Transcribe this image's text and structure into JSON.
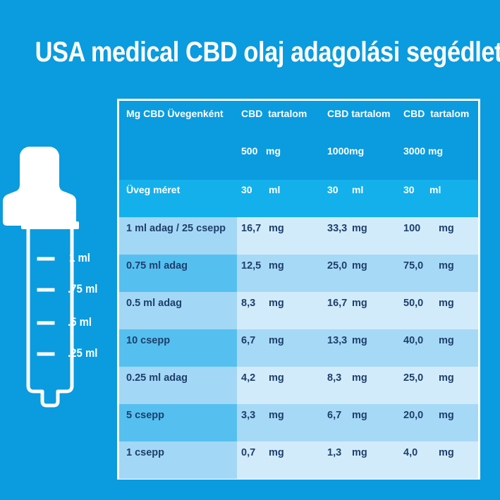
{
  "title": "USA medical CBD olaj adagolási segédlet",
  "colors": {
    "background": "#0b9bdf",
    "header_dark": "#0b9bdf",
    "header_light": "#14b0ec",
    "label_col_a": "#a3d7f6",
    "label_col_b": "#55c0f0",
    "data_light": "#d2ebfb",
    "data_mid": "#a6d9f6",
    "text_dark": "#1d3f6b"
  },
  "dropper": {
    "marks": [
      "1 ml",
      ".75 ml",
      ".5 ml",
      ".25 ml"
    ]
  },
  "table": {
    "header": {
      "col0": "Mg CBD Üvegenként",
      "col1_line1": "CBD  tartalom",
      "col1_line2": "500   mg",
      "col2_line1": "CBD tartalom",
      "col2_line2": "1000mg",
      "col3_line1": "CBD  tartalom",
      "col3_line2": "3000 mg"
    },
    "size_row": {
      "label": "Üveg méret",
      "v1": "30",
      "u1": "ml",
      "v2": "30",
      "u2": "ml",
      "v3": "30",
      "u3": "ml"
    },
    "rows": [
      {
        "label": "1 ml adag / 25 csepp",
        "v1": "16,7",
        "u1": "mg",
        "v2": "33,3",
        "u2": "mg",
        "v3": "100",
        "u3": "mg"
      },
      {
        "label": "0.75 ml adag",
        "v1": "12,5",
        "u1": "mg",
        "v2": "25,0",
        "u2": "mg",
        "v3": "75,0",
        "u3": "mg"
      },
      {
        "label": "0.5 ml adag",
        "v1": "8,3",
        "u1": "mg",
        "v2": "16,7",
        "u2": "mg",
        "v3": "50,0",
        "u3": "mg"
      },
      {
        "label": "10 csepp",
        "v1": "6,7",
        "u1": "mg",
        "v2": "13,3",
        "u2": "mg",
        "v3": "40,0",
        "u3": "mg"
      },
      {
        "label": "0.25 ml adag",
        "v1": "4,2",
        "u1": "mg",
        "v2": "8,3",
        "u2": "mg",
        "v3": "25,0",
        "u3": "mg"
      },
      {
        "label": "5 csepp",
        "v1": "3,3",
        "u1": "mg",
        "v2": "6,7",
        "u2": "mg",
        "v3": "20,0",
        "u3": "mg"
      },
      {
        "label": "1 csepp",
        "v1": "0,7",
        "u1": "mg",
        "v2": "1,3",
        "u2": "mg",
        "v3": "4,0",
        "u3": "mg"
      }
    ]
  }
}
